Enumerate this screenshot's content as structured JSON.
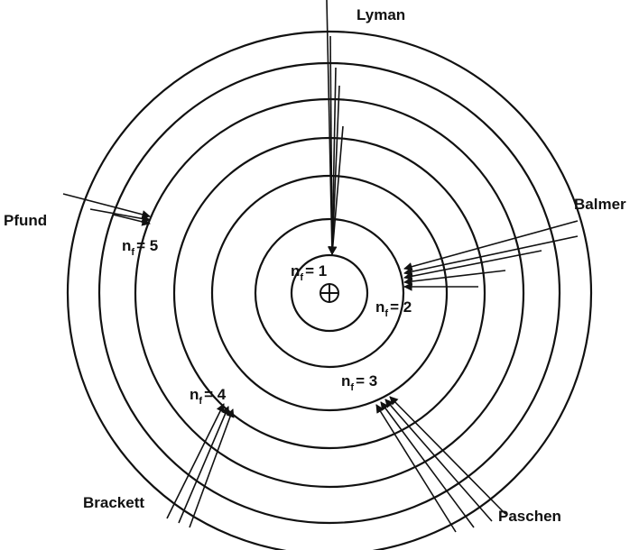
{
  "series": [
    "Lyman",
    "Balmer",
    "Paschen",
    "Brackett",
    "Pfund"
  ],
  "levels": [
    {
      "symbol": "n",
      "sub": "f",
      "rest": "= 1"
    },
    {
      "symbol": "n",
      "sub": "f",
      "rest": "= 2"
    },
    {
      "symbol": "n",
      "sub": "f",
      "rest": "= 3"
    },
    {
      "symbol": "n",
      "sub": "f",
      "rest": "= 4"
    },
    {
      "symbol": "n",
      "sub": "f",
      "rest": "= 5"
    }
  ]
}
